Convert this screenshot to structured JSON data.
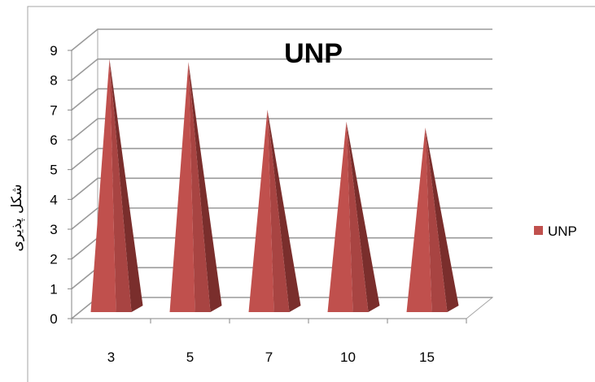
{
  "chart_data": {
    "type": "bar",
    "shape": "3d-pyramid",
    "title": "UNP",
    "xlabel": "",
    "ylabel": "شکل پذیری",
    "categories": [
      "3",
      "5",
      "7",
      "10",
      "15"
    ],
    "series": [
      {
        "name": "UNP",
        "values": [
          8.6,
          8.5,
          6.9,
          6.5,
          6.3
        ],
        "color": "#c0504d"
      }
    ],
    "ylim": [
      0,
      9
    ],
    "yticks": [
      0,
      1,
      2,
      3,
      4,
      5,
      6,
      7,
      8,
      9
    ],
    "grid": true,
    "legend": "right"
  }
}
